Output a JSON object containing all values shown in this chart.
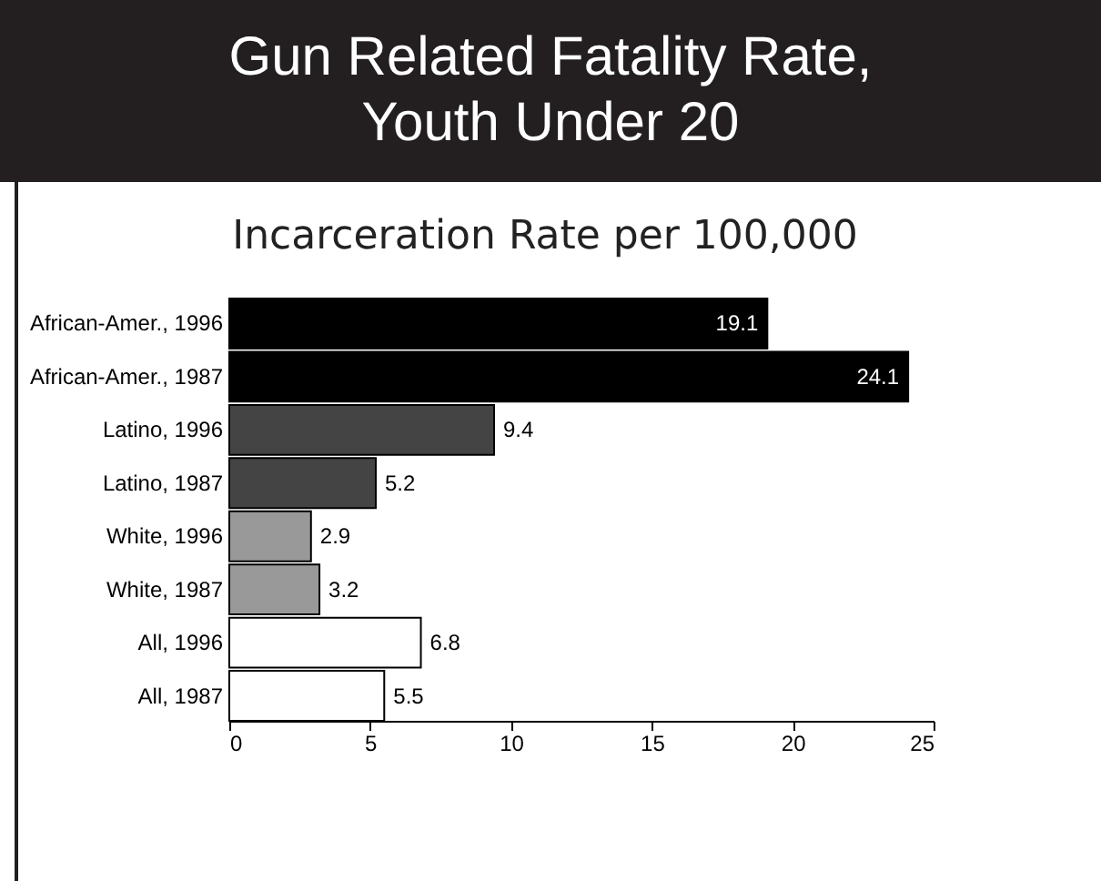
{
  "chart_data": {
    "type": "bar",
    "orientation": "horizontal",
    "title": "Gun Related Fatality Rate, Youth Under 20",
    "subtitle": "Incarceration Rate per 100,000",
    "categories": [
      "African-Amer., 1996",
      "African-Amer., 1987",
      "Latino, 1996",
      "Latino, 1987",
      "White, 1996",
      "White, 1987",
      "All, 1996",
      "All, 1987"
    ],
    "values": [
      19.1,
      24.1,
      9.4,
      5.2,
      2.9,
      3.2,
      6.8,
      5.5
    ],
    "colors": [
      "#000000",
      "#000000",
      "#444444",
      "#444444",
      "#999999",
      "#999999",
      "#ffffff",
      "#ffffff"
    ],
    "xlim": [
      0,
      25
    ],
    "xticks": [
      0,
      5,
      10,
      15,
      20,
      25
    ],
    "grid": false,
    "data_labels": true
  }
}
